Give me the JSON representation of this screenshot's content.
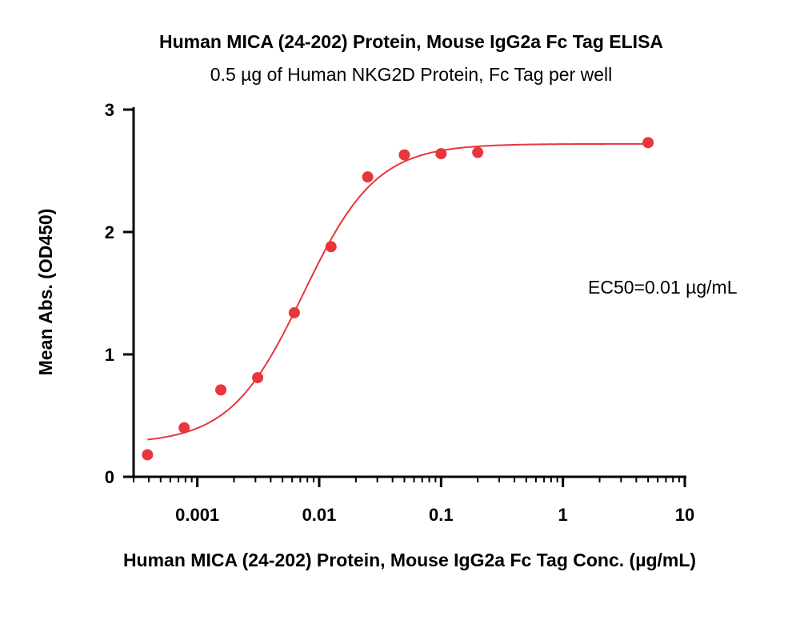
{
  "chart_data": {
    "type": "scatter",
    "title": "Human MICA (24-202) Protein, Mouse IgG2a Fc Tag ELISA",
    "subtitle": "0.5 µg of Human NKG2D Protein, Fc Tag per well",
    "xlabel": "Human MICA (24-202) Protein, Mouse IgG2a Fc Tag Conc. (µg/mL)",
    "ylabel": "Mean Abs. (OD450)",
    "x_scale": "log",
    "xlim": [
      0.0003,
      10
    ],
    "ylim": [
      0,
      3
    ],
    "x_ticks": [
      0.001,
      0.01,
      0.1,
      1,
      10
    ],
    "x_tick_labels": [
      "0.001",
      "0.01",
      "0.1",
      "1",
      "10"
    ],
    "y_ticks": [
      0,
      1,
      2,
      3
    ],
    "y_tick_labels": [
      "0",
      "1",
      "2",
      "3"
    ],
    "grid": false,
    "annotation": "EC50=0.01 µg/mL",
    "point_color": "#e8363c",
    "curve_color": "#e8363c",
    "points": [
      {
        "x": 0.00039,
        "y": 0.18
      },
      {
        "x": 0.00078,
        "y": 0.4
      },
      {
        "x": 0.00156,
        "y": 0.71
      },
      {
        "x": 0.003125,
        "y": 0.81
      },
      {
        "x": 0.00625,
        "y": 1.34
      },
      {
        "x": 0.0125,
        "y": 1.88
      },
      {
        "x": 0.025,
        "y": 2.45
      },
      {
        "x": 0.05,
        "y": 2.63
      },
      {
        "x": 0.1,
        "y": 2.64
      },
      {
        "x": 0.2,
        "y": 2.65
      },
      {
        "x": 5,
        "y": 2.73
      }
    ],
    "fit": {
      "model": "4PL",
      "bottom": 0.27,
      "top": 2.72,
      "ec50": 0.0074,
      "hill": 1.45,
      "x_range": [
        0.00039,
        5
      ]
    }
  }
}
